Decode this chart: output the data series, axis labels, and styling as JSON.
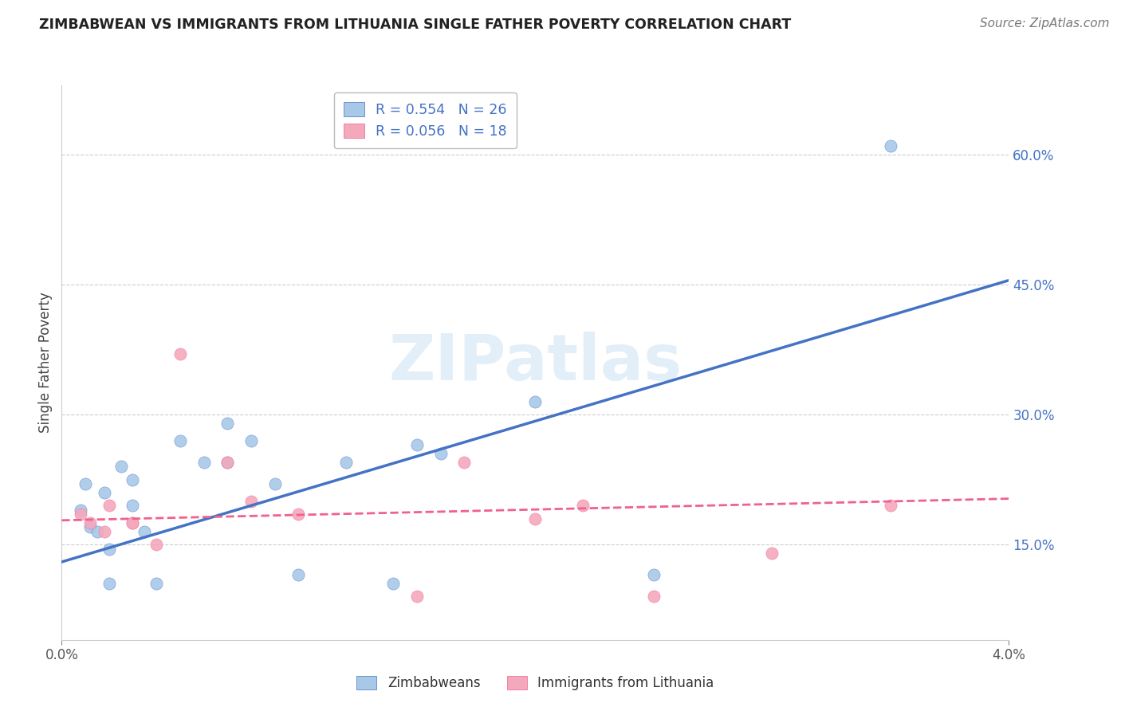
{
  "title": "ZIMBABWEAN VS IMMIGRANTS FROM LITHUANIA SINGLE FATHER POVERTY CORRELATION CHART",
  "source": "Source: ZipAtlas.com",
  "ylabel": "Single Father Poverty",
  "yticks_labels": [
    "15.0%",
    "30.0%",
    "45.0%",
    "60.0%"
  ],
  "ytick_vals": [
    0.15,
    0.3,
    0.45,
    0.6
  ],
  "xrange": [
    0.0,
    0.04
  ],
  "yrange": [
    0.04,
    0.68
  ],
  "legend_label1": "R = 0.554   N = 26",
  "legend_label2": "R = 0.056   N = 18",
  "legend_label_short1": "Zimbabweans",
  "legend_label_short2": "Immigrants from Lithuania",
  "color1": "#a8c8e8",
  "color2": "#f4a8bc",
  "line_color1": "#4472c4",
  "line_color2": "#f06090",
  "tick_color": "#4472c4",
  "watermark": "ZIPatlas",
  "zimbabwean_x": [
    0.0008,
    0.001,
    0.0012,
    0.0015,
    0.0018,
    0.002,
    0.002,
    0.0025,
    0.003,
    0.003,
    0.0035,
    0.004,
    0.005,
    0.006,
    0.007,
    0.007,
    0.008,
    0.009,
    0.01,
    0.012,
    0.014,
    0.015,
    0.016,
    0.02,
    0.025,
    0.035
  ],
  "zimbabwean_y": [
    0.19,
    0.22,
    0.17,
    0.165,
    0.21,
    0.145,
    0.105,
    0.24,
    0.195,
    0.225,
    0.165,
    0.105,
    0.27,
    0.245,
    0.29,
    0.245,
    0.27,
    0.22,
    0.115,
    0.245,
    0.105,
    0.265,
    0.255,
    0.315,
    0.115,
    0.61
  ],
  "lithuania_x": [
    0.0008,
    0.0012,
    0.0018,
    0.002,
    0.003,
    0.003,
    0.004,
    0.005,
    0.007,
    0.008,
    0.01,
    0.015,
    0.017,
    0.02,
    0.022,
    0.025,
    0.03,
    0.035
  ],
  "lithuania_y": [
    0.185,
    0.175,
    0.165,
    0.195,
    0.175,
    0.175,
    0.15,
    0.37,
    0.245,
    0.2,
    0.185,
    0.09,
    0.245,
    0.18,
    0.195,
    0.09,
    0.14,
    0.195
  ],
  "zim_line_x": [
    0.0,
    0.04
  ],
  "zim_line_y": [
    0.13,
    0.455
  ],
  "lith_line_x": [
    0.0,
    0.04
  ],
  "lith_line_y": [
    0.178,
    0.203
  ]
}
